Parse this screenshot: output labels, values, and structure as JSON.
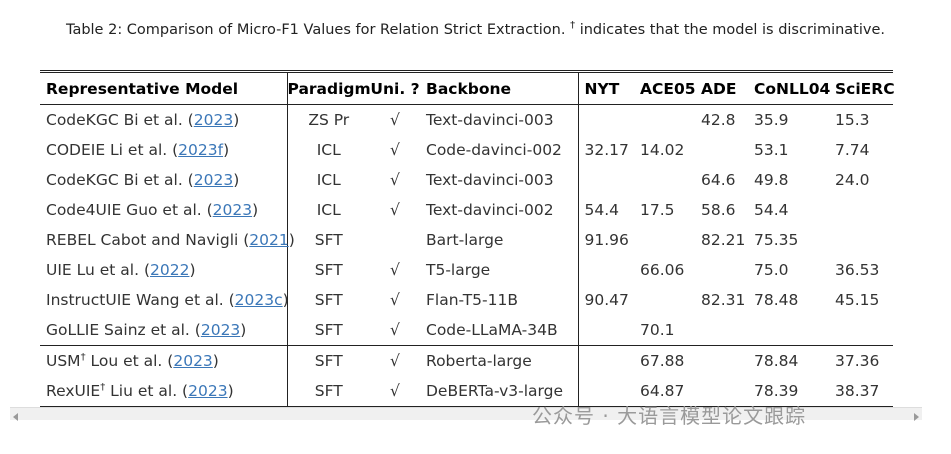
{
  "caption": [
    {
      "text": "Table 2: Comparison of Micro-F1 Values for Relation Strict Extraction. "
    },
    {
      "sup": "†"
    },
    {
      "text": " indicates that the model is discriminative."
    }
  ],
  "table": {
    "header": [
      "Representative Model",
      "Paradigm",
      "Uni. ?",
      "Backbone",
      "NYT",
      "ACE05",
      "ADE",
      "CoNLL04",
      "SciERC"
    ],
    "rows": [
      {
        "model": [
          {
            "text": "CodeKGC Bi et al. ("
          },
          {
            "link": "2023"
          },
          {
            "text": ")"
          }
        ],
        "cells": [
          "ZS Pr",
          "√",
          "Text-davinci-003",
          null,
          null,
          "42.8",
          "35.9",
          "15.3"
        ]
      },
      {
        "model": [
          {
            "text": "CODEIE Li et al. ("
          },
          {
            "link": "2023f"
          },
          {
            "text": ")"
          }
        ],
        "cells": [
          "ICL",
          "√",
          "Code-davinci-002",
          "32.17",
          "14.02",
          null,
          "53.1",
          "7.74"
        ]
      },
      {
        "model": [
          {
            "text": "CodeKGC Bi et al. ("
          },
          {
            "link": "2023"
          },
          {
            "text": ")"
          }
        ],
        "cells": [
          "ICL",
          "√",
          "Text-davinci-003",
          null,
          null,
          "64.6",
          "49.8",
          "24.0"
        ]
      },
      {
        "model": [
          {
            "text": "Code4UIE Guo et al. ("
          },
          {
            "link": "2023"
          },
          {
            "text": ")"
          }
        ],
        "cells": [
          "ICL",
          "√",
          "Text-davinci-002",
          "54.4",
          "17.5",
          "58.6",
          "54.4",
          null
        ]
      },
      {
        "model": [
          {
            "text": "REBEL Cabot and Navigli ("
          },
          {
            "link": "2021"
          },
          {
            "text": ")"
          }
        ],
        "cells": [
          "SFT",
          null,
          "Bart-large",
          "91.96",
          null,
          "82.21",
          "75.35",
          null
        ]
      },
      {
        "model": [
          {
            "text": "UIE Lu et al. ("
          },
          {
            "link": "2022"
          },
          {
            "text": ")"
          }
        ],
        "cells": [
          "SFT",
          "√",
          "T5-large",
          null,
          "66.06",
          null,
          "75.0",
          "36.53"
        ]
      },
      {
        "model": [
          {
            "text": "InstructUIE Wang et al. ("
          },
          {
            "link": "2023c"
          },
          {
            "text": ")"
          }
        ],
        "cells": [
          "SFT",
          "√",
          "Flan-T5-11B",
          "90.47",
          null,
          "82.31",
          "78.48",
          "45.15"
        ]
      },
      {
        "model": [
          {
            "text": "GoLLIE Sainz et al. ("
          },
          {
            "link": "2023"
          },
          {
            "text": ")"
          }
        ],
        "cells": [
          "SFT",
          "√",
          "Code-LLaMA-34B",
          null,
          "70.1",
          null,
          null,
          null
        ]
      },
      {
        "model": [
          {
            "text": "USM"
          },
          {
            "sup": "†"
          },
          {
            "text": " Lou et al. ("
          },
          {
            "link": "2023"
          },
          {
            "text": ")"
          }
        ],
        "cells": [
          "SFT",
          "√",
          "Roberta-large",
          null,
          "67.88",
          null,
          "78.84",
          "37.36"
        ]
      },
      {
        "model": [
          {
            "text": "RexUIE"
          },
          {
            "sup": "†"
          },
          {
            "text": " Liu et al. ("
          },
          {
            "link": "2023"
          },
          {
            "text": ")"
          }
        ],
        "cells": [
          "SFT",
          "√",
          "DeBERTa-v3-large",
          null,
          "64.87",
          null,
          "78.39",
          "38.37"
        ]
      }
    ]
  },
  "watermark": "公众号 · 大语言模型论文跟踪"
}
